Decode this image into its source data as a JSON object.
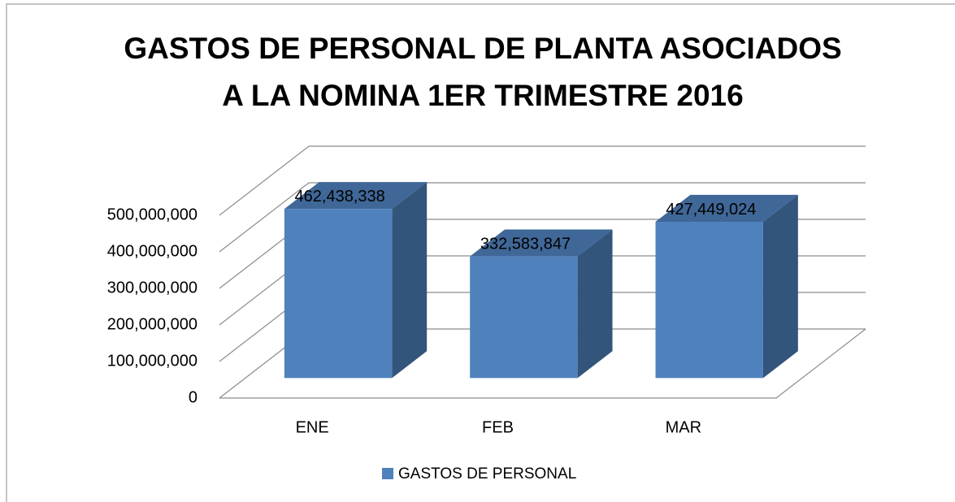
{
  "chart_data": {
    "type": "bar3d",
    "title": [
      "GASTOS DE PERSONAL DE PLANTA ASOCIADOS",
      "A LA NOMINA 1ER TRIMESTRE 2016"
    ],
    "categories": [
      "ENE",
      "FEB",
      "MAR"
    ],
    "series": [
      {
        "name": "GASTOS DE PERSONAL",
        "color": "#4f81bd",
        "values": [
          462438338,
          332583847,
          427449024
        ],
        "value_labels": [
          "462,438,338",
          "332,583,847",
          "427,449,024"
        ]
      }
    ],
    "ylim": [
      0,
      500000000
    ],
    "yticks": [
      0,
      {
        "value": 100000000,
        "label": "100,000,000"
      },
      {
        "value": 200000000,
        "label": "200,000,000"
      },
      {
        "value": 300000000,
        "label": "300,000,000"
      },
      {
        "value": 400000000,
        "label": "400,000,000"
      },
      {
        "value": 500000000,
        "label": "500,000,000"
      }
    ],
    "grid": true,
    "legend": "bottom"
  }
}
